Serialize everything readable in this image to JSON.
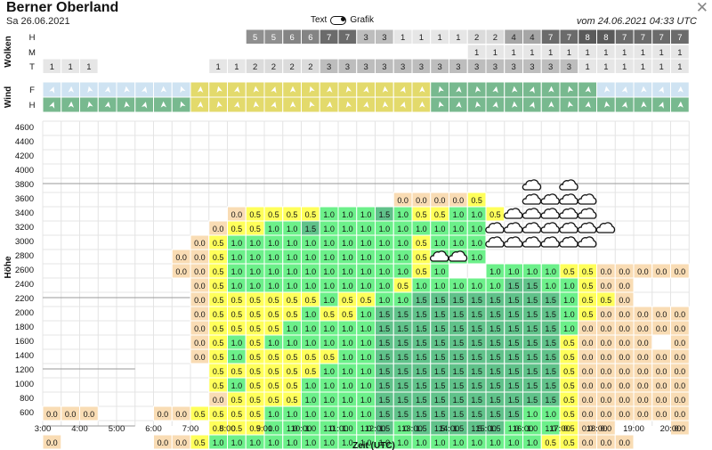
{
  "header": {
    "title": "Berner Oberland",
    "date": "Sa 26.06.2021",
    "toggle_left": "Text",
    "toggle_right": "Grafik",
    "issued": "vom 24.06.2021 04:33 UTC",
    "close_symbol": "✕"
  },
  "clouds": {
    "group_label": "Wolken",
    "rows": [
      {
        "label": "H",
        "values": [
          "",
          "",
          "",
          "",
          "",
          "",
          "",
          "",
          "",
          "",
          "",
          "5",
          "5",
          "6",
          "6",
          "7",
          "7",
          "3",
          "3",
          "1",
          "1",
          "1",
          "1",
          "2",
          "2",
          "4",
          "4",
          "7",
          "7",
          "8",
          "8",
          "7",
          "7",
          "7",
          "7"
        ]
      },
      {
        "label": "M",
        "values": [
          "",
          "",
          "",
          "",
          "",
          "",
          "",
          "",
          "",
          "",
          "",
          "",
          "",
          "",
          "",
          "",
          "",
          "",
          "",
          "",
          "",
          "",
          "",
          "1",
          "1",
          "1",
          "1",
          "1",
          "1",
          "1",
          "1",
          "1",
          "1",
          "1",
          "1"
        ]
      },
      {
        "label": "T",
        "values": [
          "1",
          "1",
          "1",
          "",
          "",
          "",
          "",
          "",
          "",
          "1",
          "1",
          "2",
          "2",
          "2",
          "2",
          "3",
          "3",
          "3",
          "3",
          "3",
          "3",
          "3",
          "3",
          "3",
          "3",
          "3",
          "3",
          "3",
          "3",
          "1",
          "1",
          "1",
          "1",
          "1",
          "1"
        ]
      }
    ],
    "color_scale": {
      "0": "#ffffff",
      "1": "#e6e6e6",
      "2": "#dbdbdb",
      "3": "#bdbdbd",
      "4": "#a6a6a6",
      "5": "#8f8f8f",
      "6": "#848484",
      "7": "#6b6b6b",
      "8": "#5a5a5a"
    }
  },
  "wind": {
    "group_label": "Wind",
    "rows": [
      {
        "label": "F",
        "colors": [
          "b",
          "b",
          "b",
          "b",
          "b",
          "b",
          "b",
          "b",
          "y",
          "y",
          "y",
          "y",
          "y",
          "y",
          "y",
          "y",
          "y",
          "y",
          "y",
          "y",
          "y",
          "g",
          "g",
          "g",
          "g",
          "g",
          "g",
          "g",
          "g",
          "g",
          "b",
          "b",
          "b",
          "b",
          "b"
        ]
      },
      {
        "label": "H",
        "colors": [
          "g",
          "g",
          "g",
          "g",
          "g",
          "g",
          "g",
          "g",
          "y",
          "y",
          "y",
          "y",
          "y",
          "y",
          "y",
          "y",
          "y",
          "y",
          "y",
          "y",
          "y",
          "g",
          "g",
          "g",
          "g",
          "g",
          "g",
          "g",
          "g",
          "g",
          "g",
          "g",
          "g",
          "g",
          "g"
        ]
      }
    ],
    "arrow_glyph": "➤",
    "color_scale": {
      "b": "#cfe3f2",
      "y": "#e3da6c",
      "g": "#78b98f"
    }
  },
  "main": {
    "y_axis_label": "Höhe",
    "x_axis_label": "Zeit (UTC)",
    "y_ticks": [
      "4600",
      "4400",
      "4200",
      "4000",
      "3800",
      "3600",
      "3400",
      "3200",
      "3000",
      "2800",
      "2600",
      "2400",
      "2200",
      "2000",
      "1800",
      "1600",
      "1400",
      "1200",
      "1000",
      "800",
      "600"
    ],
    "x_ticks": [
      "3:00",
      "4:00",
      "5:00",
      "6:00",
      "7:00",
      "8:00",
      "9:00",
      "10:00",
      "11:00",
      "12:00",
      "13:00",
      "14:00",
      "15:00",
      "16:00",
      "17:00",
      "18:00",
      "19:00",
      "20:00"
    ],
    "cell_colors": {
      "0.0": "#f9dcb4",
      "0.5": "#ffff5a",
      "1.0": "#6cf08a",
      "1.5": "#60c28a"
    },
    "rows": [
      [
        "",
        "",
        "",
        "",
        "",
        "",
        "",
        "",
        "",
        "",
        "",
        "",
        "",
        "",
        "",
        "",
        "",
        "",
        "",
        "",
        "",
        "",
        "",
        "",
        "",
        "",
        "",
        "",
        "",
        "",
        "",
        "",
        "",
        "",
        ""
      ],
      [
        "",
        "",
        "",
        "",
        "",
        "",
        "",
        "",
        "",
        "",
        "",
        "",
        "",
        "",
        "",
        "",
        "",
        "",
        "",
        "",
        "",
        "",
        "",
        "",
        "",
        "",
        "",
        "",
        "",
        "",
        "",
        "",
        "",
        "",
        ""
      ],
      [
        "",
        "",
        "",
        "",
        "",
        "",
        "",
        "",
        "",
        "",
        "",
        "",
        "",
        "",
        "",
        "",
        "",
        "",
        "",
        "",
        "",
        "",
        "",
        "",
        "",
        "",
        "",
        "",
        "",
        "",
        "",
        "",
        "",
        "",
        ""
      ],
      [
        "",
        "",
        "",
        "",
        "",
        "",
        "",
        "",
        "",
        "",
        "",
        "",
        "",
        "",
        "",
        "",
        "",
        "",
        "",
        "",
        "",
        "",
        "",
        "",
        "",
        "",
        "",
        "",
        "",
        "",
        "",
        "",
        "",
        "",
        ""
      ],
      [
        "",
        "",
        "",
        "",
        "",
        "",
        "",
        "",
        "",
        "",
        "",
        "",
        "",
        "",
        "",
        "",
        "",
        "",
        "",
        "",
        "",
        "",
        "",
        "",
        "",
        "",
        "",
        "",
        "",
        "",
        "",
        "",
        "",
        "",
        ""
      ],
      [
        "",
        "",
        "",
        "",
        "",
        "",
        "",
        "",
        "",
        "",
        "",
        "",
        "",
        "",
        "",
        "",
        "",
        "",
        "",
        "0.0",
        "0.0",
        "0.0",
        "0.0",
        "0.5",
        "",
        "",
        "",
        "",
        "",
        "",
        "",
        "",
        "",
        "",
        ""
      ],
      [
        "",
        "",
        "",
        "",
        "",
        "",
        "",
        "",
        "",
        "",
        "0.0",
        "0.5",
        "0.5",
        "0.5",
        "0.5",
        "1.0",
        "1.0",
        "1.0",
        "1.5",
        "1.0",
        "0.5",
        "0.5",
        "1.0",
        "1.0",
        "0.5",
        "",
        "",
        "",
        "",
        "",
        "",
        "",
        "",
        "",
        ""
      ],
      [
        "",
        "",
        "",
        "",
        "",
        "",
        "",
        "",
        "",
        "0.0",
        "0.5",
        "0.5",
        "1.0",
        "1.0",
        "1.5",
        "1.0",
        "1.0",
        "1.0",
        "1.0",
        "1.0",
        "1.0",
        "1.0",
        "1.0",
        "1.0",
        "",
        "",
        "",
        "",
        "",
        "",
        "",
        "",
        "",
        "",
        ""
      ],
      [
        "",
        "",
        "",
        "",
        "",
        "",
        "",
        "",
        "0.0",
        "0.5",
        "1.0",
        "1.0",
        "1.0",
        "1.0",
        "1.0",
        "1.0",
        "1.0",
        "1.0",
        "1.0",
        "1.0",
        "0.5",
        "1.0",
        "1.0",
        "1.0",
        "",
        "",
        "",
        "",
        "",
        "",
        "",
        "",
        "",
        "",
        ""
      ],
      [
        "",
        "",
        "",
        "",
        "",
        "",
        "",
        "0.0",
        "0.0",
        "0.5",
        "1.0",
        "1.0",
        "1.0",
        "1.0",
        "1.0",
        "1.0",
        "1.0",
        "1.0",
        "1.0",
        "1.0",
        "0.5",
        "1.0",
        "1.0",
        "1.0",
        "",
        "",
        "",
        "",
        "",
        "",
        "",
        "",
        "",
        "",
        ""
      ],
      [
        "",
        "",
        "",
        "",
        "",
        "",
        "",
        "0.0",
        "0.0",
        "0.5",
        "1.0",
        "1.0",
        "1.0",
        "1.0",
        "1.0",
        "1.0",
        "1.0",
        "1.0",
        "1.0",
        "1.0",
        "0.5",
        "1.0",
        "",
        "",
        "1.0",
        "1.0",
        "1.0",
        "1.0",
        "0.5",
        "0.5",
        "0.0",
        "0.0",
        "0.0",
        "0.0",
        "0.0"
      ],
      [
        "",
        "",
        "",
        "",
        "",
        "",
        "",
        "",
        "0.0",
        "0.5",
        "1.0",
        "1.0",
        "1.0",
        "1.0",
        "1.0",
        "1.0",
        "1.0",
        "1.0",
        "1.0",
        "0.5",
        "1.0",
        "1.0",
        "1.0",
        "1.0",
        "1.0",
        "1.5",
        "1.5",
        "1.0",
        "1.0",
        "0.5",
        "0.0",
        "0.0",
        "",
        "",
        ""
      ],
      [
        "",
        "",
        "",
        "",
        "",
        "",
        "",
        "",
        "0.0",
        "0.5",
        "0.5",
        "0.5",
        "0.5",
        "0.5",
        "0.5",
        "1.0",
        "0.5",
        "0.5",
        "1.0",
        "1.0",
        "1.5",
        "1.5",
        "1.5",
        "1.5",
        "1.5",
        "1.5",
        "1.5",
        "1.5",
        "1.0",
        "0.5",
        "0.5",
        "0.0",
        "",
        "",
        ""
      ],
      [
        "",
        "",
        "",
        "",
        "",
        "",
        "",
        "",
        "0.0",
        "0.5",
        "0.5",
        "0.5",
        "0.5",
        "0.5",
        "1.0",
        "0.5",
        "0.5",
        "1.0",
        "1.5",
        "1.5",
        "1.5",
        "1.5",
        "1.5",
        "1.5",
        "1.5",
        "1.5",
        "1.5",
        "1.5",
        "1.0",
        "0.5",
        "0.0",
        "0.0",
        "0.0",
        "0.0",
        "0.0"
      ],
      [
        "",
        "",
        "",
        "",
        "",
        "",
        "",
        "",
        "0.0",
        "0.5",
        "0.5",
        "0.5",
        "0.5",
        "1.0",
        "1.0",
        "1.0",
        "1.0",
        "1.0",
        "1.5",
        "1.5",
        "1.5",
        "1.5",
        "1.5",
        "1.5",
        "1.5",
        "1.5",
        "1.5",
        "1.5",
        "1.0",
        "0.0",
        "0.0",
        "0.0",
        "0.0",
        "0.0",
        "0.0"
      ],
      [
        "",
        "",
        "",
        "",
        "",
        "",
        "",
        "",
        "0.0",
        "0.5",
        "1.0",
        "0.5",
        "1.0",
        "1.0",
        "1.0",
        "1.0",
        "1.0",
        "1.0",
        "1.5",
        "1.5",
        "1.5",
        "1.5",
        "1.5",
        "1.5",
        "1.5",
        "1.5",
        "1.5",
        "1.5",
        "0.5",
        "0.0",
        "0.0",
        "0.0",
        "0.0",
        "",
        "0.0"
      ],
      [
        "",
        "",
        "",
        "",
        "",
        "",
        "",
        "",
        "0.0",
        "0.5",
        "1.0",
        "0.5",
        "0.5",
        "0.5",
        "0.5",
        "0.5",
        "1.0",
        "1.0",
        "1.5",
        "1.5",
        "1.5",
        "1.5",
        "1.5",
        "1.5",
        "1.5",
        "1.5",
        "1.5",
        "1.5",
        "0.5",
        "0.0",
        "0.0",
        "0.0",
        "0.0",
        "0.0",
        "0.0"
      ],
      [
        "",
        "",
        "",
        "",
        "",
        "",
        "",
        "",
        "",
        "0.5",
        "0.5",
        "0.5",
        "0.5",
        "0.5",
        "0.5",
        "1.0",
        "1.0",
        "1.0",
        "1.5",
        "1.5",
        "1.5",
        "1.5",
        "1.5",
        "1.5",
        "1.5",
        "1.5",
        "1.5",
        "1.5",
        "0.5",
        "0.0",
        "0.0",
        "0.0",
        "0.0",
        "0.0",
        "0.0"
      ],
      [
        "",
        "",
        "",
        "",
        "",
        "",
        "",
        "",
        "",
        "0.5",
        "1.0",
        "0.5",
        "0.5",
        "0.5",
        "1.0",
        "1.0",
        "1.0",
        "1.0",
        "1.5",
        "1.5",
        "1.5",
        "1.5",
        "1.5",
        "1.5",
        "1.5",
        "1.5",
        "1.5",
        "1.5",
        "0.5",
        "0.0",
        "0.0",
        "0.0",
        "0.0",
        "0.0",
        "0.0"
      ],
      [
        "",
        "",
        "",
        "",
        "",
        "",
        "",
        "",
        "",
        "0.0",
        "0.5",
        "0.5",
        "0.5",
        "0.5",
        "1.0",
        "1.0",
        "1.0",
        "1.0",
        "1.5",
        "1.5",
        "1.5",
        "1.5",
        "1.5",
        "1.5",
        "1.5",
        "1.5",
        "1.5",
        "1.5",
        "0.5",
        "0.0",
        "0.0",
        "0.0",
        "0.0",
        "0.0",
        "0.0"
      ],
      [
        "0.0",
        "0.0",
        "0.0",
        "",
        "",
        "",
        "0.0",
        "0.0",
        "0.5",
        "0.5",
        "0.5",
        "0.5",
        "1.0",
        "1.0",
        "1.0",
        "1.0",
        "1.0",
        "1.0",
        "1.5",
        "1.5",
        "1.5",
        "1.5",
        "1.5",
        "1.5",
        "1.5",
        "1.5",
        "1.0",
        "1.0",
        "0.5",
        "0.0",
        "0.0",
        "0.0",
        "0.0",
        "0.0",
        "0.0"
      ],
      [
        "",
        "",
        "",
        "",
        "",
        "",
        "",
        "",
        "",
        "0.5",
        "0.5",
        "0.5",
        "1.0",
        "1.0",
        "1.0",
        "1.0",
        "1.0",
        "1.0",
        "1.5",
        "1.0",
        "1.5",
        "1.5",
        "1.5",
        "1.5",
        "1.5",
        "1.0",
        "1.0",
        "1.0",
        "0.5",
        "0.0",
        "0.0",
        "",
        "",
        "",
        "0.0"
      ],
      [
        "0.0",
        "",
        "",
        "",
        "",
        "",
        "0.0",
        "0.0",
        "0.5",
        "1.0",
        "1.0",
        "1.0",
        "1.0",
        "1.0",
        "1.0",
        "1.0",
        "1.0",
        "1.0",
        "1.0",
        "1.0",
        "1.0",
        "1.0",
        "1.0",
        "1.0",
        "1.0",
        "1.0",
        "1.0",
        "0.5",
        "0.5",
        "0.0",
        "0.0",
        "0.0",
        "",
        "",
        ""
      ]
    ],
    "cloud_icons": [
      {
        "row": 4,
        "cols": [
          26,
          28
        ]
      },
      {
        "row": 5,
        "cols": [
          26,
          27,
          28,
          29
        ]
      },
      {
        "row": 6,
        "cols": [
          25,
          26,
          27,
          28,
          29
        ]
      },
      {
        "row": 7,
        "cols": [
          24,
          25,
          26,
          27,
          28,
          29,
          30
        ]
      },
      {
        "row": 8,
        "cols": [
          24,
          25,
          26,
          27,
          28,
          29
        ]
      },
      {
        "row": 9,
        "cols": [
          21,
          22
        ]
      }
    ]
  }
}
